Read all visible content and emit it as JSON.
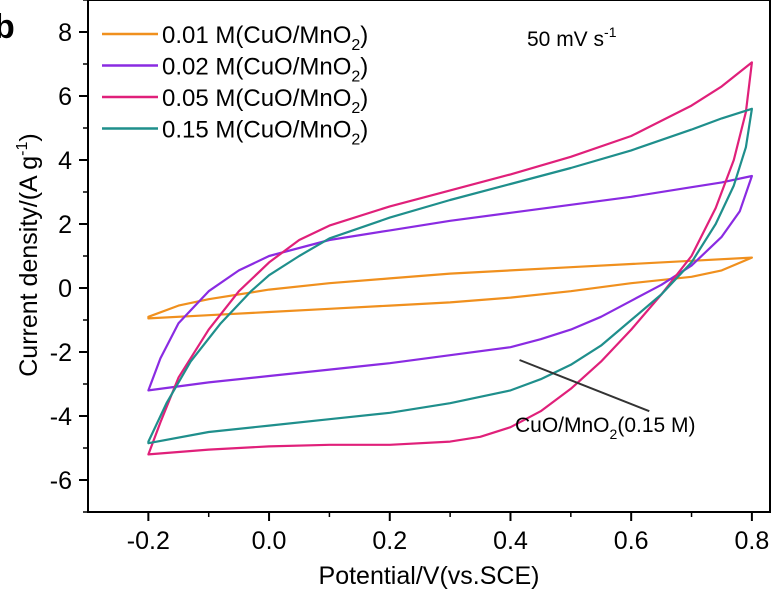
{
  "chart_data": {
    "type": "line",
    "panel_label": "b",
    "xlabel": "Potential/V(vs.SCE)",
    "ylabel_main": "Current density/(A g",
    "ylabel_sup": "-1",
    "ylabel_close": ")",
    "xlim": [
      -0.3,
      0.83
    ],
    "ylim": [
      -7,
      9
    ],
    "xticks": [
      -0.2,
      0.0,
      0.2,
      0.4,
      0.6,
      0.8
    ],
    "xtick_labels": [
      "-0.2",
      "0.0",
      "0.2",
      "0.4",
      "0.6",
      "0.8"
    ],
    "yticks": [
      -6,
      -4,
      -2,
      0,
      2,
      4,
      6,
      8
    ],
    "ytick_labels": [
      "-6",
      "-4",
      "-2",
      "0",
      "2",
      "4",
      "6",
      "8"
    ],
    "scan_rate": {
      "main": "50 mV s",
      "sup": "-1"
    },
    "annotation": {
      "text_main": "CuO/MnO",
      "text_sub": "2",
      "text_tail": "(0.15 M)",
      "arrow_from": [
        0.63,
        -3.85
      ],
      "arrow_to": [
        0.415,
        -2.25
      ]
    },
    "legend_position": "top-left",
    "series": [
      {
        "legend_main": "0.01 M(CuO/MnO",
        "legend_sub": "2",
        "legend_tail": ")",
        "color": "#F0901E",
        "upper": [
          [
            -0.2,
            -0.9
          ],
          [
            -0.15,
            -0.55
          ],
          [
            -0.1,
            -0.35
          ],
          [
            0.0,
            -0.05
          ],
          [
            0.1,
            0.15
          ],
          [
            0.2,
            0.3
          ],
          [
            0.3,
            0.45
          ],
          [
            0.4,
            0.55
          ],
          [
            0.5,
            0.65
          ],
          [
            0.6,
            0.75
          ],
          [
            0.7,
            0.85
          ],
          [
            0.8,
            0.95
          ]
        ],
        "lower": [
          [
            0.8,
            0.95
          ],
          [
            0.75,
            0.55
          ],
          [
            0.7,
            0.35
          ],
          [
            0.6,
            0.15
          ],
          [
            0.5,
            -0.1
          ],
          [
            0.4,
            -0.3
          ],
          [
            0.3,
            -0.45
          ],
          [
            0.2,
            -0.55
          ],
          [
            0.1,
            -0.65
          ],
          [
            0.0,
            -0.75
          ],
          [
            -0.1,
            -0.85
          ],
          [
            -0.2,
            -0.95
          ]
        ]
      },
      {
        "legend_main": "0.02 M(CuO/MnO",
        "legend_sub": "2",
        "legend_tail": ")",
        "color": "#8A2BE2",
        "upper": [
          [
            -0.2,
            -3.2
          ],
          [
            -0.18,
            -2.2
          ],
          [
            -0.15,
            -1.1
          ],
          [
            -0.1,
            -0.1
          ],
          [
            -0.05,
            0.55
          ],
          [
            0.0,
            1.0
          ],
          [
            0.1,
            1.5
          ],
          [
            0.2,
            1.8
          ],
          [
            0.3,
            2.1
          ],
          [
            0.4,
            2.35
          ],
          [
            0.5,
            2.6
          ],
          [
            0.6,
            2.85
          ],
          [
            0.7,
            3.15
          ],
          [
            0.75,
            3.3
          ],
          [
            0.8,
            3.5
          ]
        ],
        "lower": [
          [
            0.8,
            3.5
          ],
          [
            0.78,
            2.4
          ],
          [
            0.75,
            1.6
          ],
          [
            0.7,
            0.7
          ],
          [
            0.65,
            0.1
          ],
          [
            0.6,
            -0.4
          ],
          [
            0.55,
            -0.9
          ],
          [
            0.5,
            -1.3
          ],
          [
            0.45,
            -1.6
          ],
          [
            0.4,
            -1.85
          ],
          [
            0.3,
            -2.1
          ],
          [
            0.2,
            -2.35
          ],
          [
            0.1,
            -2.55
          ],
          [
            0.0,
            -2.75
          ],
          [
            -0.1,
            -2.95
          ],
          [
            -0.2,
            -3.2
          ]
        ]
      },
      {
        "legend_main": "0.05 M(CuO/MnO",
        "legend_sub": "2",
        "legend_tail": ")",
        "color": "#E0207A",
        "upper": [
          [
            -0.2,
            -5.2
          ],
          [
            -0.18,
            -4.2
          ],
          [
            -0.15,
            -2.8
          ],
          [
            -0.1,
            -1.3
          ],
          [
            -0.05,
            -0.1
          ],
          [
            0.0,
            0.8
          ],
          [
            0.05,
            1.5
          ],
          [
            0.1,
            1.95
          ],
          [
            0.2,
            2.55
          ],
          [
            0.3,
            3.05
          ],
          [
            0.4,
            3.55
          ],
          [
            0.5,
            4.1
          ],
          [
            0.6,
            4.75
          ],
          [
            0.7,
            5.7
          ],
          [
            0.75,
            6.3
          ],
          [
            0.8,
            7.05
          ]
        ],
        "lower": [
          [
            0.8,
            7.05
          ],
          [
            0.79,
            5.5
          ],
          [
            0.77,
            4.0
          ],
          [
            0.74,
            2.5
          ],
          [
            0.7,
            1.0
          ],
          [
            0.65,
            -0.2
          ],
          [
            0.6,
            -1.3
          ],
          [
            0.55,
            -2.3
          ],
          [
            0.5,
            -3.15
          ],
          [
            0.45,
            -3.85
          ],
          [
            0.4,
            -4.35
          ],
          [
            0.35,
            -4.65
          ],
          [
            0.3,
            -4.8
          ],
          [
            0.2,
            -4.9
          ],
          [
            0.1,
            -4.9
          ],
          [
            0.0,
            -4.95
          ],
          [
            -0.1,
            -5.05
          ],
          [
            -0.2,
            -5.2
          ]
        ]
      },
      {
        "legend_main": "0.15 M(CuO/MnO",
        "legend_sub": "2",
        "legend_tail": ")",
        "color": "#1F8F8C",
        "upper": [
          [
            -0.2,
            -4.8
          ],
          [
            -0.17,
            -3.6
          ],
          [
            -0.13,
            -2.3
          ],
          [
            -0.08,
            -1.1
          ],
          [
            -0.03,
            -0.1
          ],
          [
            0.0,
            0.4
          ],
          [
            0.05,
            1.0
          ],
          [
            0.1,
            1.55
          ],
          [
            0.2,
            2.2
          ],
          [
            0.3,
            2.75
          ],
          [
            0.4,
            3.25
          ],
          [
            0.5,
            3.75
          ],
          [
            0.6,
            4.3
          ],
          [
            0.7,
            4.95
          ],
          [
            0.75,
            5.3
          ],
          [
            0.8,
            5.6
          ]
        ],
        "lower": [
          [
            0.8,
            5.6
          ],
          [
            0.79,
            4.4
          ],
          [
            0.77,
            3.2
          ],
          [
            0.74,
            2.0
          ],
          [
            0.7,
            0.8
          ],
          [
            0.65,
            -0.2
          ],
          [
            0.6,
            -1.0
          ],
          [
            0.55,
            -1.8
          ],
          [
            0.5,
            -2.4
          ],
          [
            0.45,
            -2.85
          ],
          [
            0.4,
            -3.2
          ],
          [
            0.3,
            -3.6
          ],
          [
            0.2,
            -3.9
          ],
          [
            0.1,
            -4.1
          ],
          [
            0.0,
            -4.3
          ],
          [
            -0.1,
            -4.5
          ],
          [
            -0.2,
            -4.85
          ]
        ]
      }
    ]
  }
}
